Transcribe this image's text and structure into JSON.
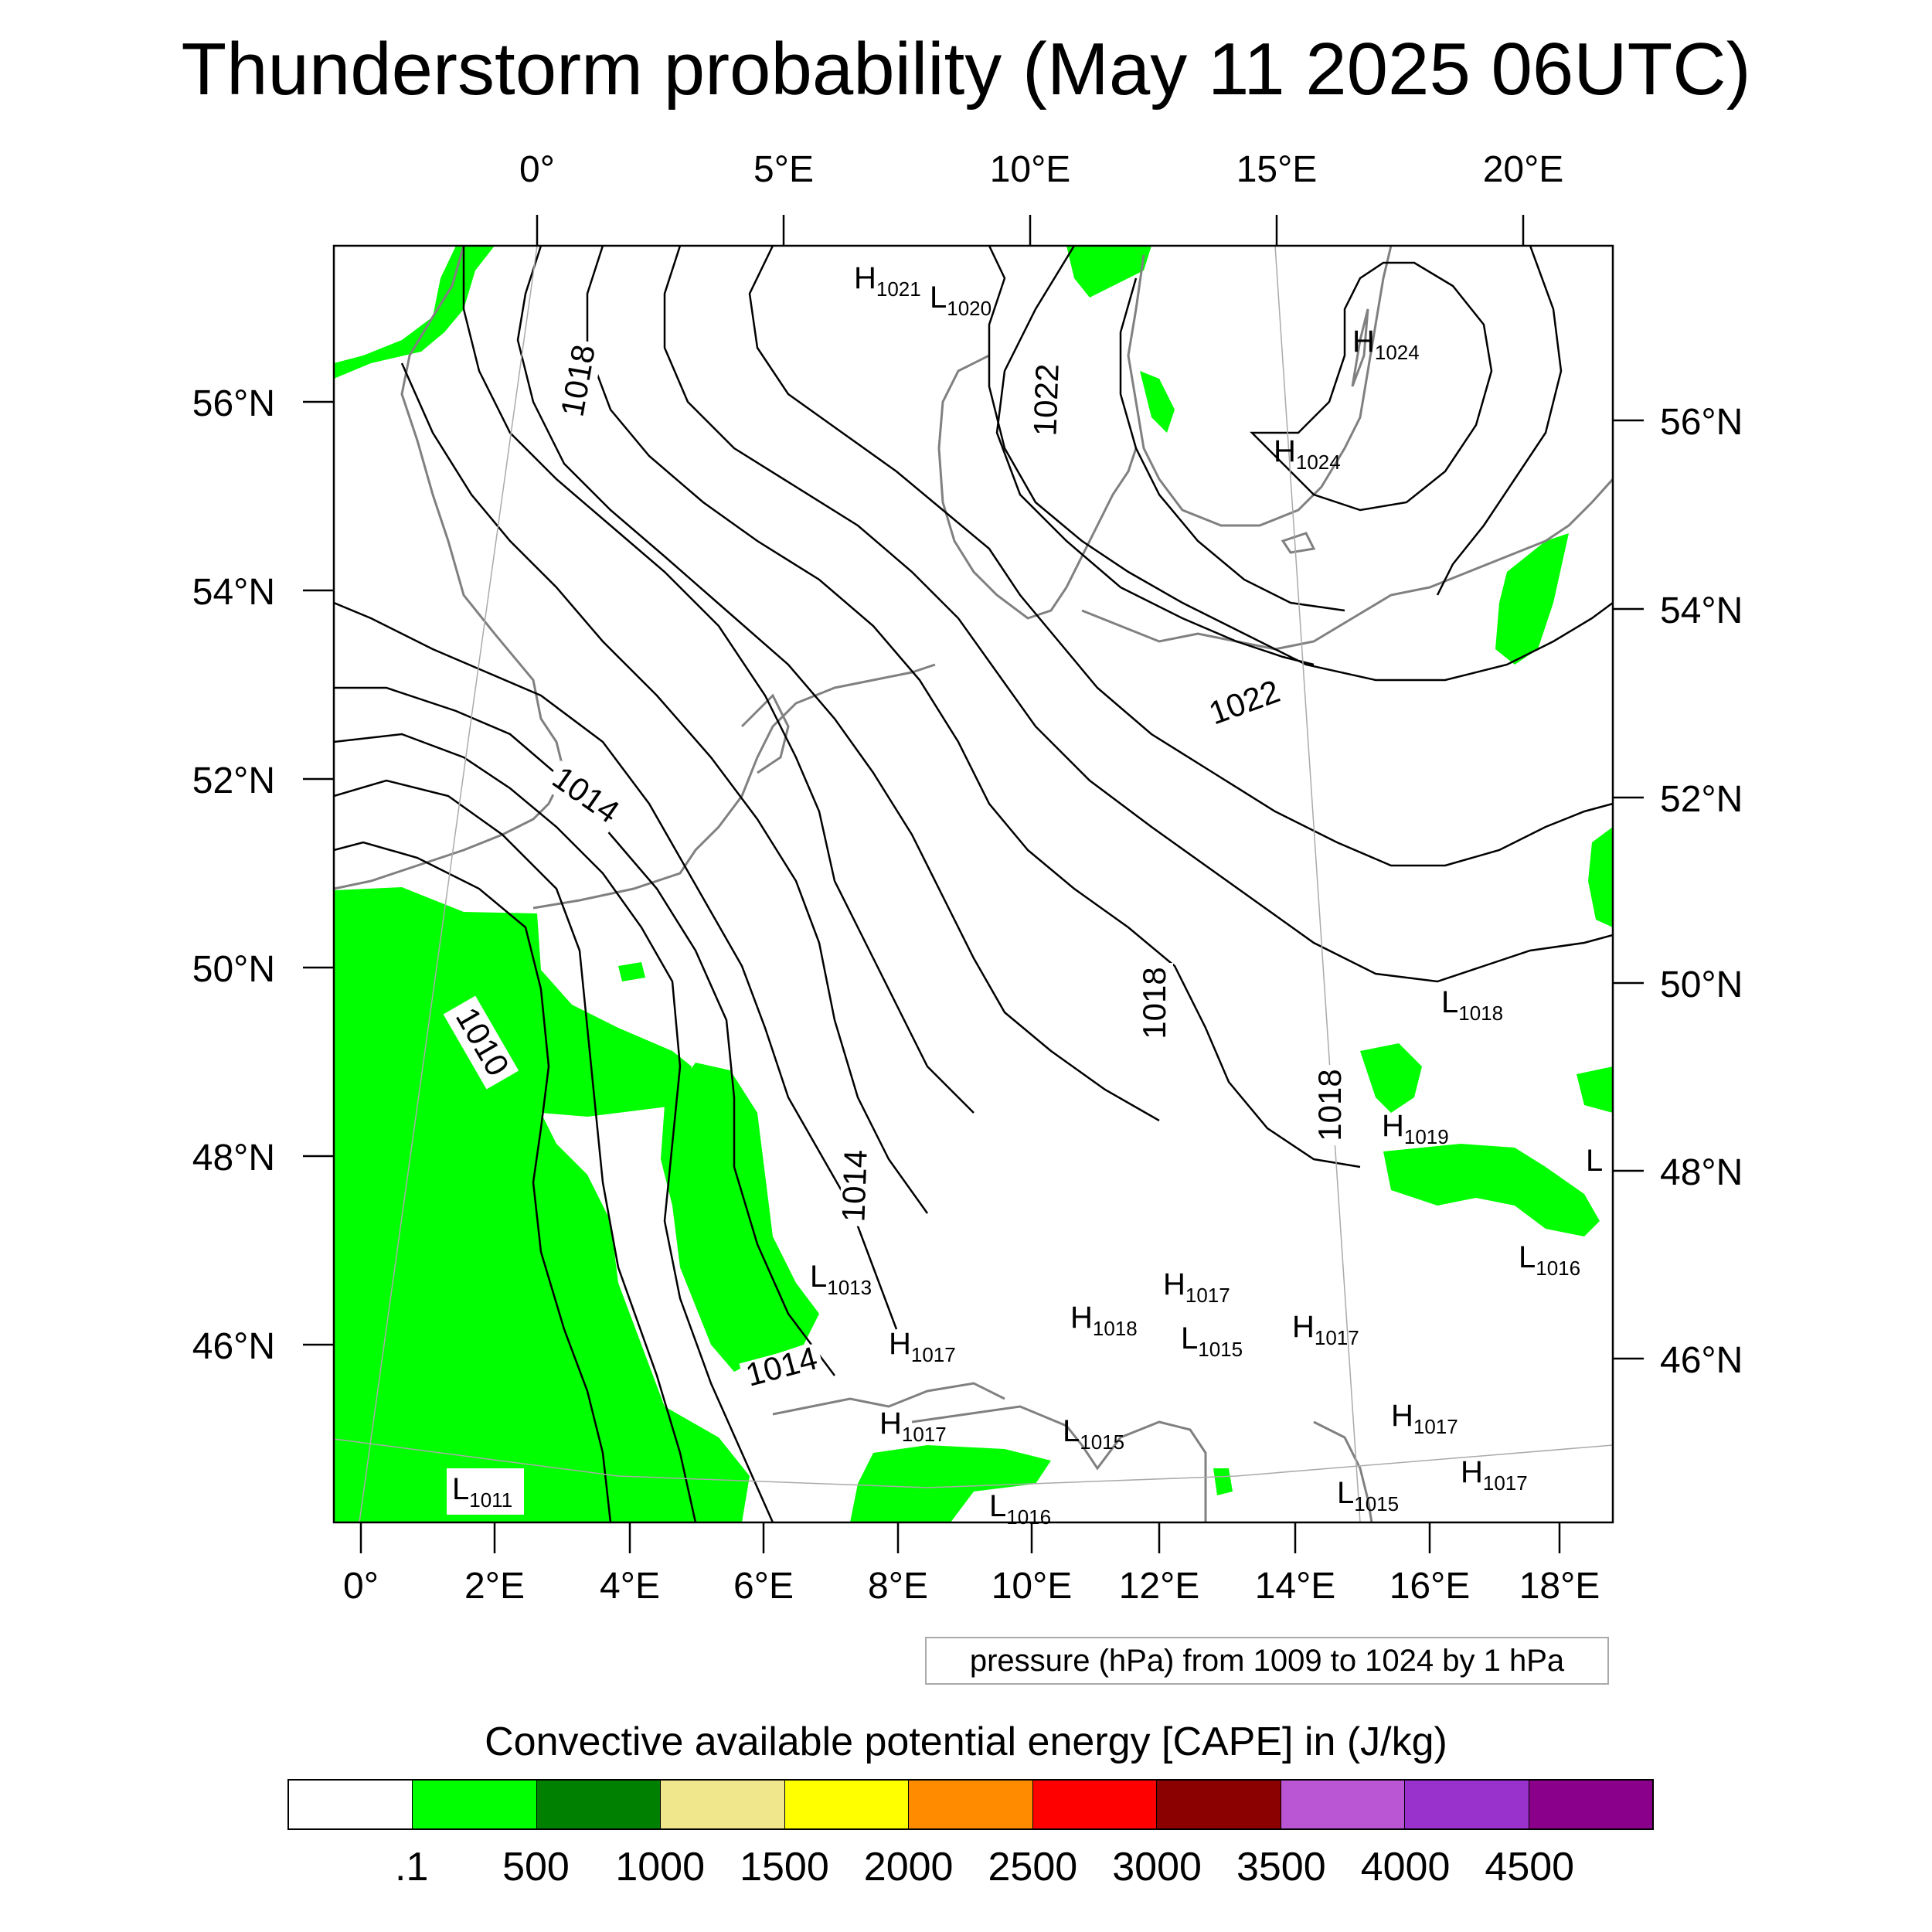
{
  "title": "Thunderstorm probability (May 11 2025 06UTC)",
  "top_lon_labels": [
    "0°",
    "5°E",
    "10°E",
    "15°E",
    "20°E"
  ],
  "bottom_lon_labels": [
    "0°",
    "2°E",
    "4°E",
    "6°E",
    "8°E",
    "10°E",
    "12°E",
    "14°E",
    "16°E",
    "18°E"
  ],
  "left_lat_labels": [
    "56°N",
    "54°N",
    "52°N",
    "50°N",
    "48°N",
    "46°N"
  ],
  "right_lat_labels": [
    "56°N",
    "54°N",
    "52°N",
    "50°N",
    "48°N",
    "46°N"
  ],
  "pressure_note": "pressure (hPa) from 1009 to 1024 by 1 hPa",
  "cape_title": "Convective available potential energy [CAPE] in (J/kg)",
  "colorbar": {
    "colors": [
      "#ffffff",
      "#00ff00",
      "#008000",
      "#f0e68c",
      "#ffff00",
      "#ff8c00",
      "#ff0000",
      "#8b0000",
      "#ba55d3",
      "#9932cc",
      "#8b008b"
    ],
    "labels": [
      ".1",
      "500",
      "1000",
      "1500",
      "2000",
      "2500",
      "3000",
      "3500",
      "4000",
      "4500"
    ]
  },
  "isobar_labels": [
    "1018",
    "1022",
    "1022",
    "1014",
    "1010",
    "1018",
    "1018",
    "1014",
    "1014"
  ],
  "pressure_centers": [
    {
      "type": "H",
      "value": "1021"
    },
    {
      "type": "L",
      "value": "1020"
    },
    {
      "type": "H",
      "value": "1024"
    },
    {
      "type": "H",
      "value": "1024"
    },
    {
      "type": "L",
      "value": "1018"
    },
    {
      "type": "H",
      "value": "1019"
    },
    {
      "type": "L",
      "value": ""
    },
    {
      "type": "L",
      "value": "1016"
    },
    {
      "type": "L",
      "value": "1013"
    },
    {
      "type": "H",
      "value": "1017"
    },
    {
      "type": "H",
      "value": "1018"
    },
    {
      "type": "L",
      "value": "1015"
    },
    {
      "type": "H",
      "value": "1017"
    },
    {
      "type": "H",
      "value": "1017"
    },
    {
      "type": "H",
      "value": "1017"
    },
    {
      "type": "L",
      "value": "1015"
    },
    {
      "type": "H",
      "value": "1017"
    },
    {
      "type": "H",
      "value": "1017"
    },
    {
      "type": "L",
      "value": "1011"
    },
    {
      "type": "L",
      "value": "1016"
    },
    {
      "type": "L",
      "value": "1015"
    }
  ],
  "colors": {
    "cape_green": "#00ff00",
    "coastline": "#808080",
    "isobar": "#000000"
  }
}
